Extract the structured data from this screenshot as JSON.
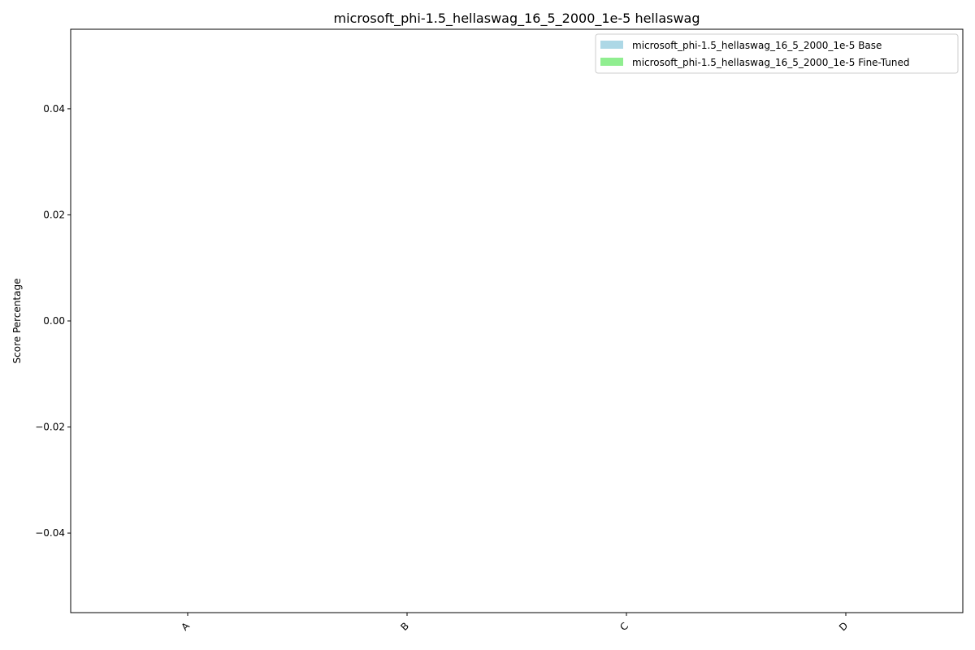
{
  "chart_data": {
    "type": "bar",
    "title": "microsoft_phi-1.5_hellaswag_16_5_2000_1e-5 hellaswag",
    "xlabel": "",
    "ylabel": "Score Percentage",
    "categories": [
      "A",
      "B",
      "C",
      "D"
    ],
    "series": [
      {
        "name": "microsoft_phi-1.5_hellaswag_16_5_2000_1e-5 Base",
        "values": [
          0,
          0,
          0,
          0
        ],
        "color": "#add8e6"
      },
      {
        "name": "microsoft_phi-1.5_hellaswag_16_5_2000_1e-5 Fine-Tuned",
        "values": [
          0,
          0,
          0,
          0
        ],
        "color": "#90ee90"
      }
    ],
    "ylim": [
      -0.055,
      0.055
    ],
    "yticks": [
      "0.04",
      "0.02",
      "0.00",
      "−0.02",
      "−0.04"
    ],
    "ytick_values": [
      0.04,
      0.02,
      0,
      -0.02,
      -0.04
    ],
    "grid": false,
    "legend_position": "top-right",
    "xtick_rotation": 45
  }
}
